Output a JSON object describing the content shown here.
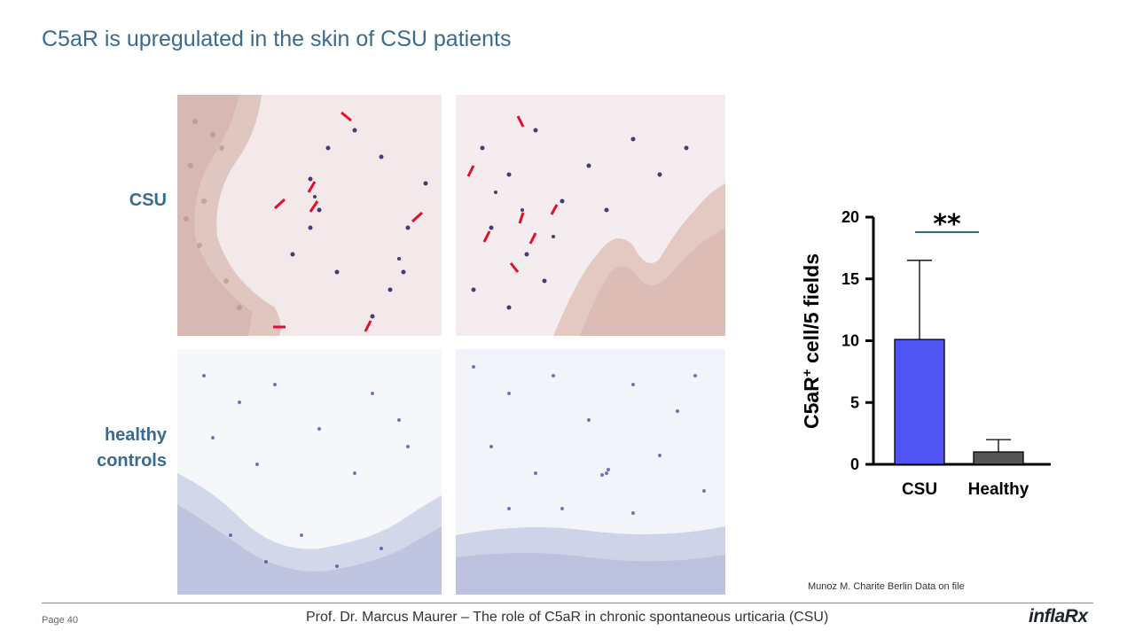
{
  "slide": {
    "title": "C5aR is upregulated in the skin of CSU patients",
    "row_labels": {
      "csu": "CSU",
      "healthy_line1": "healthy",
      "healthy_line2": "controls"
    },
    "citation": "Munoz M. Charite Berlin Data on file",
    "footer": {
      "page": "Page 40",
      "title": "Prof. Dr. Marcus Maurer – The role of C5aR in chronic spontaneous urticaria (CSU)",
      "logo_main": "infla",
      "logo_accent": "Rx"
    }
  },
  "colors": {
    "title": "#3a6b8c",
    "csu_bar": "#4f55f2",
    "healthy_bar": "#555555",
    "arrow": "#e0102a",
    "significance_line": "#2f6a7f"
  },
  "chart_data": {
    "type": "bar",
    "categories": [
      "CSU",
      "Healthy"
    ],
    "values": [
      10.1,
      1.0
    ],
    "error_upper": [
      16.5,
      2.0
    ],
    "ylabel_main": "C5aR",
    "ylabel_sup": "+",
    "ylabel_rest": " cell/5 fields",
    "ylim": [
      0,
      20
    ],
    "yticks": [
      0,
      5,
      10,
      15,
      20
    ],
    "significance": "**",
    "bar_colors": [
      "#4f55f2",
      "#555555"
    ]
  }
}
